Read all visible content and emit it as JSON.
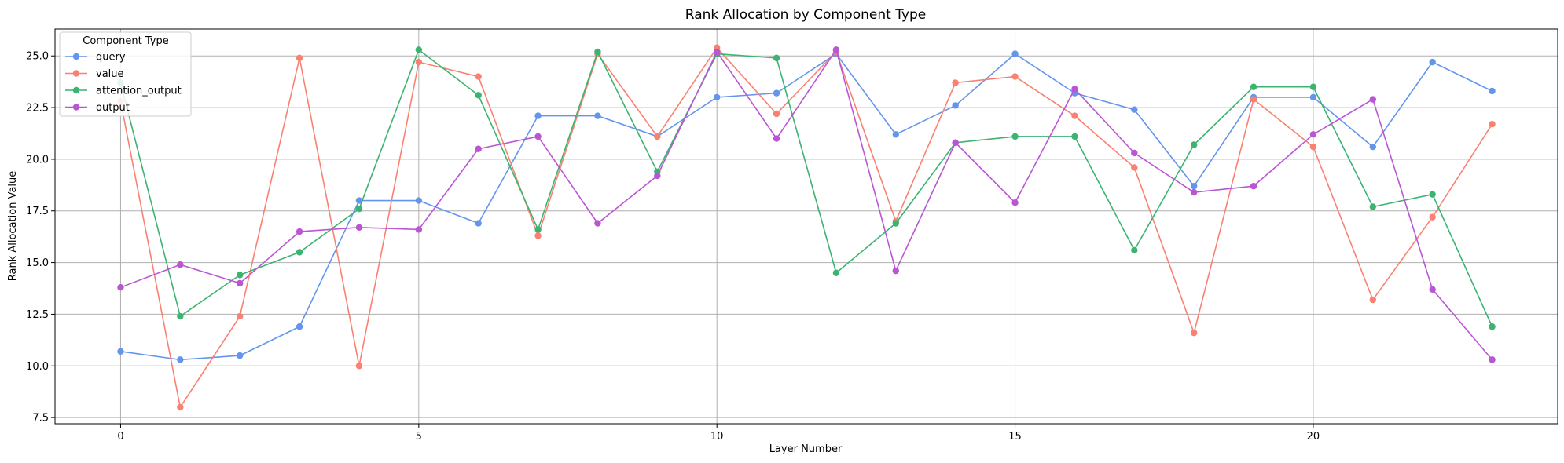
{
  "chart_data": {
    "type": "line",
    "title": "Rank Allocation by Component Type",
    "xlabel": "Layer Number",
    "ylabel": "Rank Allocation Value",
    "xlim": [
      -1.1,
      24.1
    ],
    "ylim": [
      7.2,
      26.3
    ],
    "xticks": [
      0,
      5,
      10,
      15,
      20
    ],
    "yticks": [
      7.5,
      10.0,
      12.5,
      15.0,
      17.5,
      20.0,
      22.5,
      25.0
    ],
    "ytick_labels": [
      "7.5",
      "10.0",
      "12.5",
      "15.0",
      "17.5",
      "20.0",
      "22.5",
      "25.0"
    ],
    "grid": true,
    "legend": {
      "title": "Component Type",
      "position": "top-left"
    },
    "x": [
      0,
      1,
      2,
      3,
      4,
      5,
      6,
      7,
      8,
      9,
      10,
      11,
      12,
      13,
      14,
      15,
      16,
      17,
      18,
      19,
      20,
      21,
      22,
      23
    ],
    "series": [
      {
        "name": "query",
        "color": "#6495ED",
        "values": [
          10.7,
          10.3,
          10.5,
          11.9,
          18.0,
          18.0,
          16.9,
          22.1,
          22.1,
          21.1,
          23.0,
          23.2,
          25.1,
          21.2,
          22.6,
          25.1,
          23.2,
          22.4,
          18.7,
          23.0,
          23.0,
          20.6,
          24.7,
          23.3
        ]
      },
      {
        "name": "value",
        "color": "#FA8072",
        "values": [
          22.8,
          8.0,
          12.4,
          24.9,
          10.0,
          24.7,
          24.0,
          16.3,
          25.1,
          21.1,
          25.4,
          22.2,
          25.2,
          17.0,
          23.7,
          24.0,
          22.1,
          19.6,
          11.6,
          22.9,
          20.6,
          13.2,
          17.2,
          21.7
        ]
      },
      {
        "name": "attention_output",
        "color": "#3CB371",
        "values": [
          23.7,
          12.4,
          14.4,
          15.5,
          17.6,
          25.3,
          23.1,
          16.6,
          25.2,
          19.4,
          25.1,
          24.9,
          14.5,
          16.9,
          20.8,
          21.1,
          21.1,
          15.6,
          20.7,
          23.5,
          23.5,
          17.7,
          18.3,
          11.9
        ]
      },
      {
        "name": "output",
        "color": "#BA55D3",
        "values": [
          13.8,
          14.9,
          14.0,
          16.5,
          16.7,
          16.6,
          20.5,
          21.1,
          16.9,
          19.2,
          25.2,
          21.0,
          25.3,
          14.6,
          20.8,
          17.9,
          23.4,
          20.3,
          18.4,
          18.7,
          21.2,
          22.9,
          13.7,
          10.3
        ]
      }
    ]
  }
}
